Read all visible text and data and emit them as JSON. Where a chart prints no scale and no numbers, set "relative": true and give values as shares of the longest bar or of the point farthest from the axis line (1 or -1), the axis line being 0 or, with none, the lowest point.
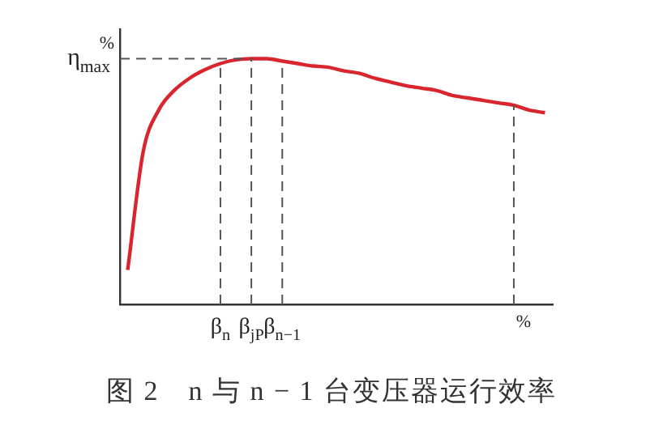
{
  "chart_data": {
    "type": "line",
    "title": "图 2　n 与 n − 1 台变压器运行效率",
    "xlabel": "%",
    "ylabel": "%",
    "relative": true,
    "categories": [
      null,
      null,
      null,
      null,
      null,
      null,
      "β$_{n}$",
      null,
      "β$_{jP}$",
      null,
      "β$_{n−1}$",
      null,
      null,
      null,
      null,
      null,
      null,
      null,
      null,
      null,
      null,
      null,
      null,
      null,
      null,
      null,
      null,
      null
    ],
    "series": [
      {
        "color": "#d9252e",
        "values": [
          0.14,
          0.62,
          0.79,
          0.87,
          0.92,
          0.955,
          0.98,
          0.995,
          1,
          1,
          0.99,
          0.98,
          0.97,
          0.965,
          0.95,
          0.94,
          0.92,
          0.905,
          0.89,
          0.88,
          0.87,
          0.85,
          0.84,
          0.83,
          0.82,
          0.81,
          0.79,
          0.78
        ]
      }
    ],
    "ref_lines": [
      {
        "axis": "y",
        "value": 1,
        "label": "η$_{max}$",
        "color": "#555555",
        "line_style": "dashed"
      }
    ],
    "grid": "x",
    "legend": false,
    "marker": "none",
    "line_style": "solid"
  }
}
